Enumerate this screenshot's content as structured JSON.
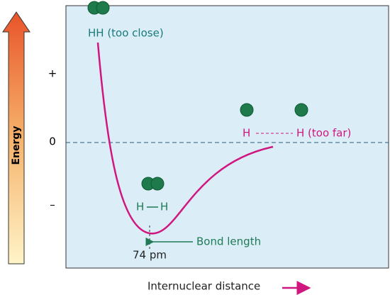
{
  "y_axis": {
    "label": "Energy",
    "ticks": [
      "+",
      "0",
      "–"
    ]
  },
  "x_axis": {
    "label": "Internuclear distance"
  },
  "annotations": {
    "too_close": "HH (too close)",
    "far_atom": "H",
    "too_far": "H (too far)",
    "molecule_left": "H",
    "molecule_right": "H",
    "bond_length": "Bond length",
    "bond_value": "74 pm"
  }
}
